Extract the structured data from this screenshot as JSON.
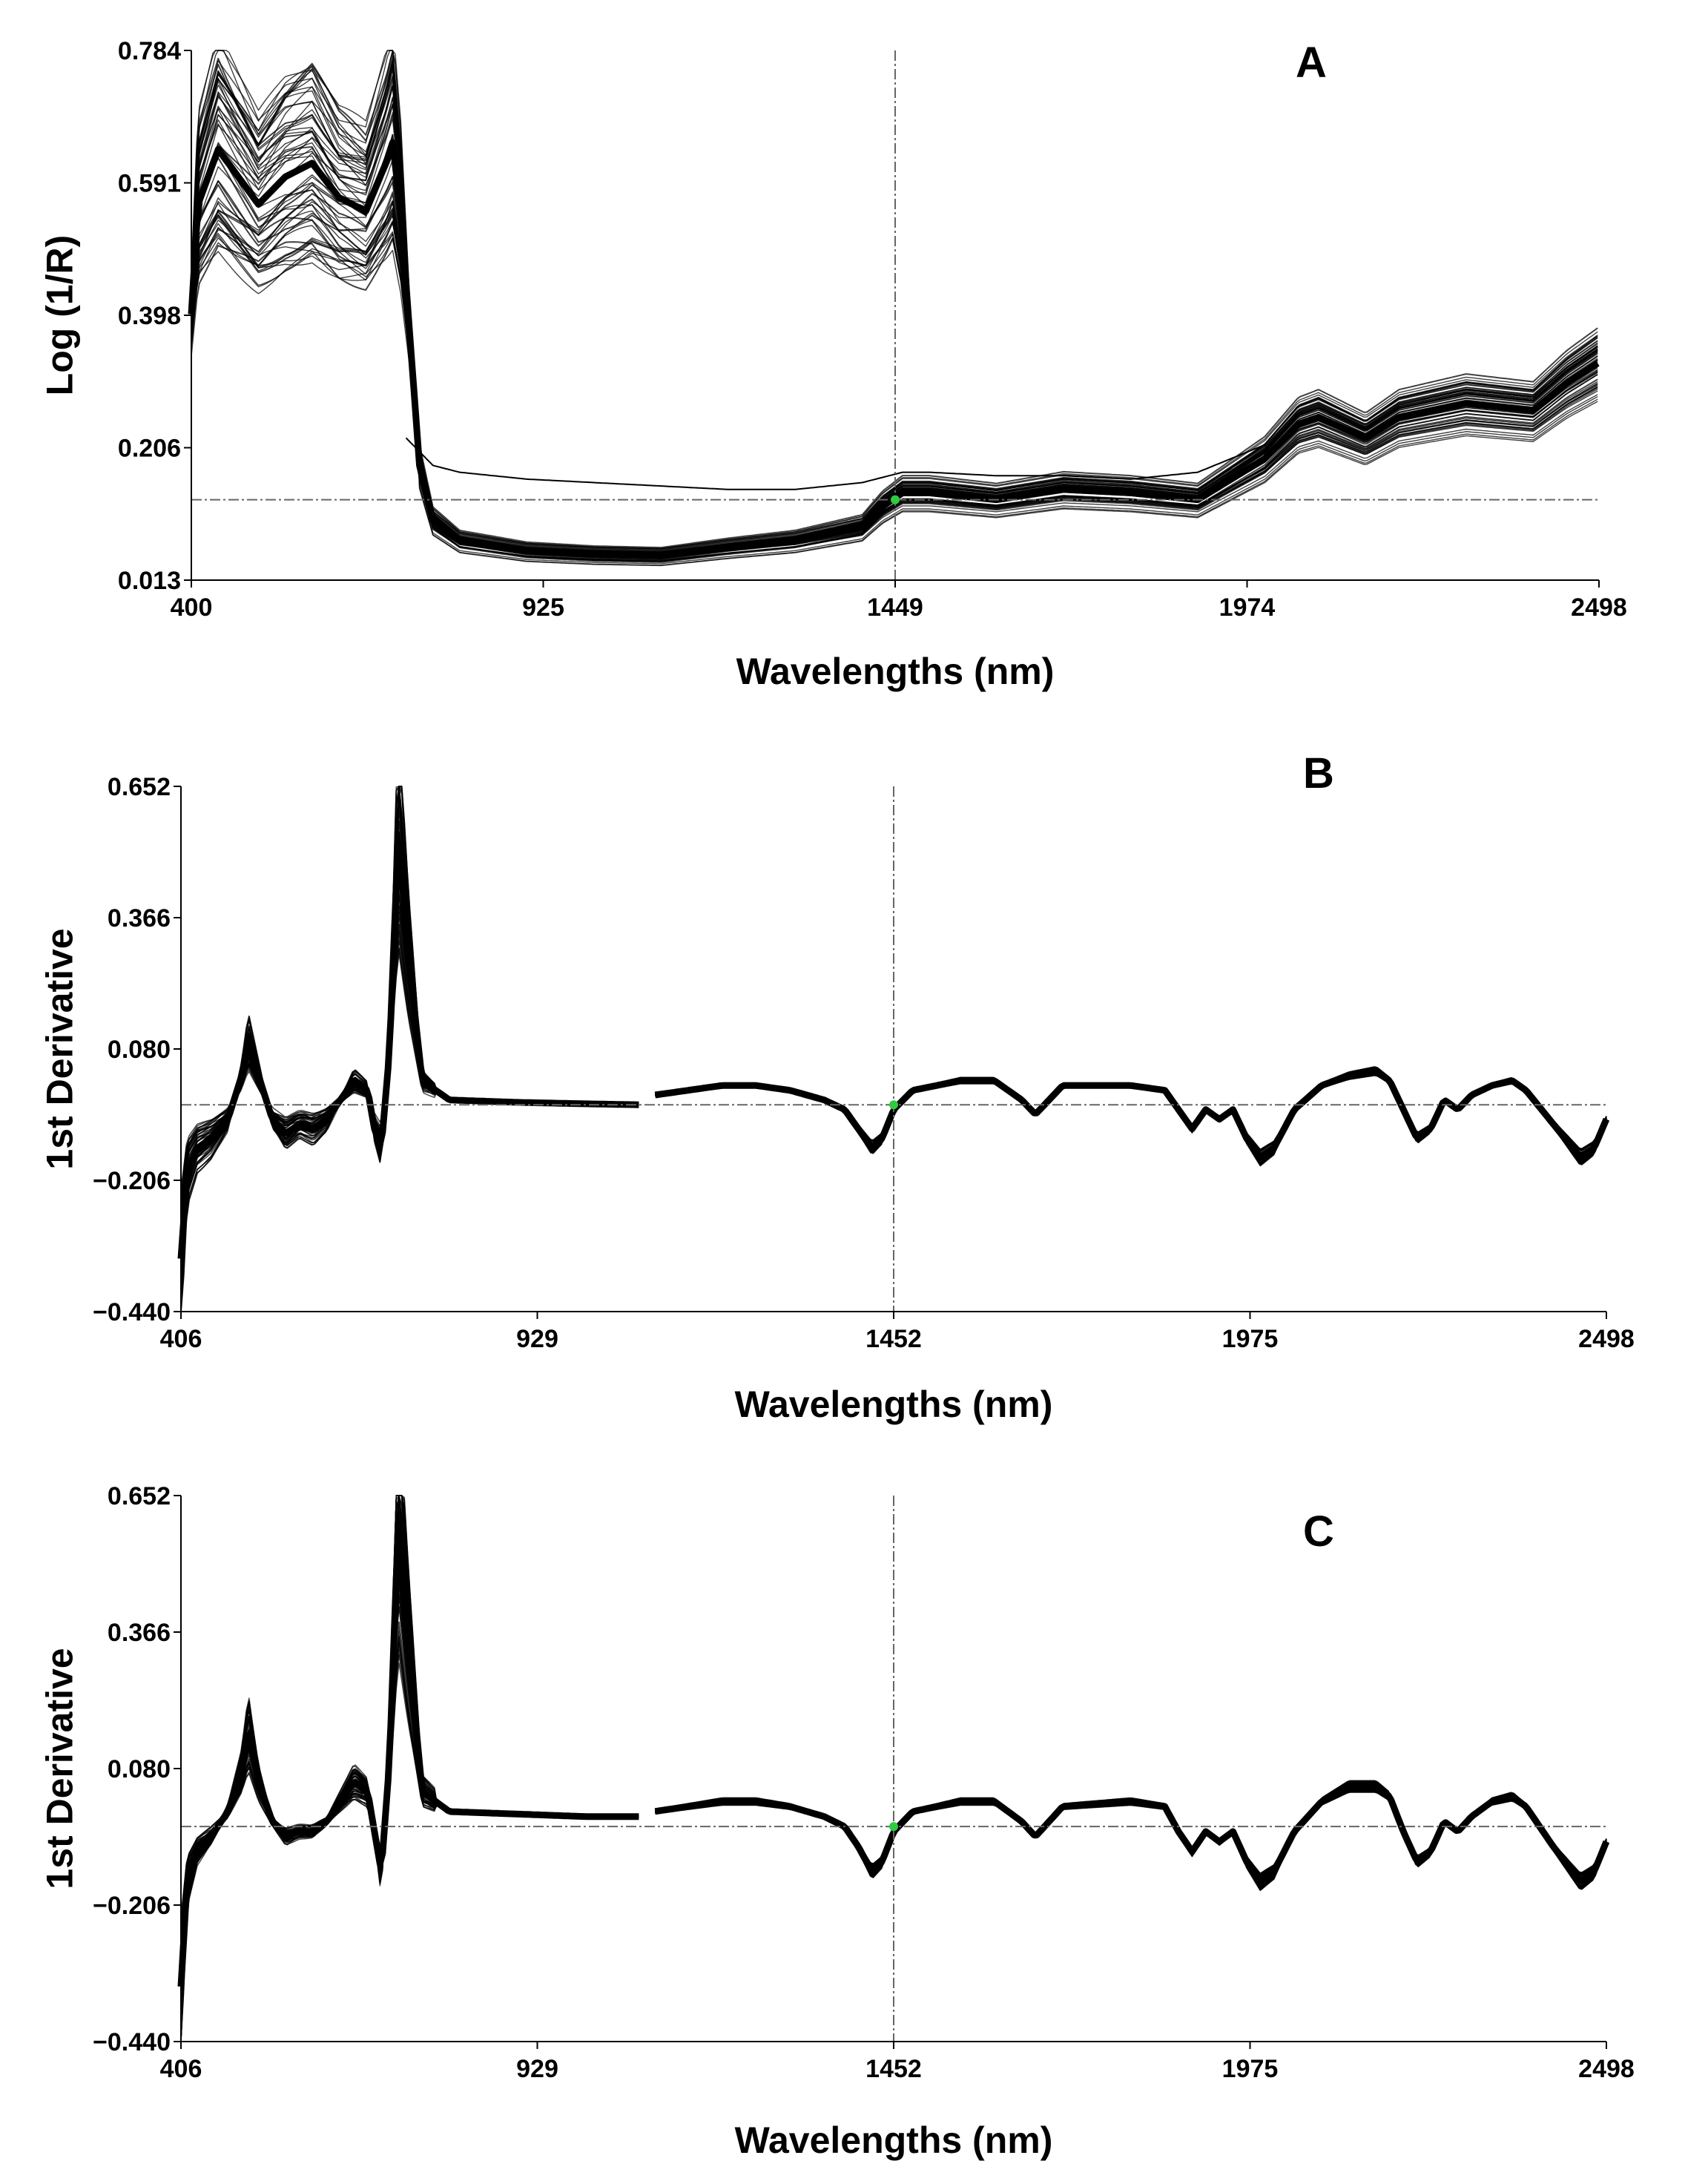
{
  "chart_data": [
    {
      "type": "line",
      "panel_label": "A",
      "xlabel": "Wavelengths (nm)",
      "ylabel": "Log (1/R)",
      "xlim": [
        400,
        2498
      ],
      "ylim": [
        0.013,
        0.784
      ],
      "x_ticks": [
        "400",
        "925",
        "1449",
        "1974",
        "2498"
      ],
      "y_ticks": [
        "0.784",
        "0.591",
        "0.398",
        "0.206",
        "0.013"
      ],
      "cursor_x": 1449,
      "cursor_y": 0.13,
      "series_count": 60,
      "mean_spectrum": {
        "x": [
          400,
          410,
          440,
          470,
          500,
          540,
          580,
          620,
          660,
          690,
          700,
          712,
          740,
          760,
          800,
          900,
          1000,
          1100,
          1200,
          1300,
          1400,
          1430,
          1460,
          1500,
          1600,
          1700,
          1800,
          1900,
          1950,
          2000,
          2050,
          2080,
          2150,
          2200,
          2300,
          2400,
          2450,
          2498
        ],
        "y": [
          0.4,
          0.56,
          0.64,
          0.6,
          0.56,
          0.6,
          0.62,
          0.57,
          0.55,
          0.62,
          0.65,
          0.55,
          0.18,
          0.1,
          0.07,
          0.055,
          0.05,
          0.048,
          0.06,
          0.07,
          0.09,
          0.12,
          0.14,
          0.14,
          0.13,
          0.145,
          0.14,
          0.13,
          0.16,
          0.19,
          0.24,
          0.25,
          0.22,
          0.25,
          0.27,
          0.26,
          0.3,
          0.33
        ]
      },
      "outlier_spectrum": {
        "x": [
          720,
          760,
          800,
          900,
          1000,
          1100,
          1200,
          1300,
          1400,
          1460,
          1500,
          1600,
          1700,
          1800,
          1900,
          1950,
          2000
        ],
        "y": [
          0.22,
          0.18,
          0.17,
          0.16,
          0.155,
          0.15,
          0.145,
          0.145,
          0.155,
          0.17,
          0.17,
          0.165,
          0.165,
          0.16,
          0.17,
          0.19,
          0.21
        ]
      }
    },
    {
      "type": "line",
      "panel_label": "B",
      "xlabel": "Wavelengths (nm)",
      "ylabel": "1st Derivative",
      "xlim": [
        406,
        2498
      ],
      "ylim": [
        -0.44,
        0.652
      ],
      "x_ticks": [
        "406",
        "929",
        "1452",
        "1975",
        "2498"
      ],
      "y_ticks": [
        "0.652",
        "0.366",
        "0.080",
        "−0.206",
        "−0.440"
      ],
      "cursor_x": 1452,
      "cursor_y": -0.01,
      "series_count": 60,
      "gap_nm": [
        1080,
        1100
      ],
      "mean_spectrum": {
        "x": [
          406,
          415,
          430,
          450,
          475,
          495,
          505,
          520,
          540,
          560,
          580,
          600,
          620,
          640,
          660,
          680,
          690,
          700,
          712,
          725,
          740,
          760,
          800,
          900,
          1000,
          1080,
          1100,
          1150,
          1200,
          1250,
          1300,
          1350,
          1380,
          1400,
          1420,
          1435,
          1452,
          1480,
          1550,
          1600,
          1640,
          1660,
          1700,
          1800,
          1850,
          1870,
          1890,
          1910,
          1930,
          1950,
          1970,
          1990,
          2010,
          2040,
          2080,
          2120,
          2160,
          2180,
          2200,
          2220,
          2240,
          2260,
          2280,
          2300,
          2330,
          2360,
          2380,
          2420,
          2460,
          2480,
          2498
        ],
        "y": [
          -0.33,
          -0.15,
          -0.1,
          -0.08,
          -0.04,
          0.05,
          0.12,
          0.05,
          -0.04,
          -0.07,
          -0.05,
          -0.06,
          -0.04,
          0.0,
          0.04,
          0.02,
          -0.06,
          -0.1,
          0.1,
          0.55,
          0.3,
          0.04,
          0.0,
          -0.005,
          -0.008,
          -0.01,
          0.01,
          0.02,
          0.03,
          0.03,
          0.02,
          0.0,
          -0.02,
          -0.06,
          -0.1,
          -0.08,
          -0.02,
          0.02,
          0.04,
          0.04,
          0.0,
          -0.03,
          0.03,
          0.03,
          0.02,
          -0.02,
          -0.06,
          -0.02,
          -0.04,
          -0.02,
          -0.08,
          -0.12,
          -0.1,
          -0.02,
          0.03,
          0.05,
          0.06,
          0.04,
          -0.02,
          -0.08,
          -0.06,
          0.0,
          -0.02,
          0.01,
          0.03,
          0.04,
          0.02,
          -0.05,
          -0.12,
          -0.1,
          -0.04
        ]
      }
    },
    {
      "type": "line",
      "panel_label": "C",
      "xlabel": "Wavelengths (nm)",
      "ylabel": "1st Derivative",
      "xlim": [
        406,
        2498
      ],
      "ylim": [
        -0.44,
        0.652
      ],
      "x_ticks": [
        "406",
        "929",
        "1452",
        "1975",
        "2498"
      ],
      "y_ticks": [
        "0.652",
        "0.366",
        "0.080",
        "−0.206",
        "−0.440"
      ],
      "cursor_x": 1452,
      "cursor_y": -0.01,
      "series_count": 60,
      "gap_nm": [
        1080,
        1100
      ],
      "mean_spectrum": {
        "x": [
          406,
          415,
          430,
          450,
          475,
          495,
          505,
          520,
          540,
          560,
          580,
          600,
          620,
          640,
          660,
          680,
          690,
          700,
          712,
          725,
          740,
          760,
          800,
          900,
          1000,
          1080,
          1100,
          1150,
          1200,
          1250,
          1300,
          1350,
          1380,
          1400,
          1420,
          1435,
          1452,
          1480,
          1550,
          1600,
          1640,
          1660,
          1700,
          1800,
          1850,
          1870,
          1890,
          1910,
          1930,
          1950,
          1970,
          1990,
          2010,
          2040,
          2080,
          2120,
          2160,
          2180,
          2200,
          2220,
          2240,
          2260,
          2280,
          2300,
          2330,
          2360,
          2380,
          2420,
          2460,
          2480,
          2498
        ],
        "y": [
          -0.33,
          -0.12,
          -0.06,
          -0.03,
          0.02,
          0.1,
          0.18,
          0.08,
          0.0,
          -0.03,
          -0.02,
          -0.02,
          0.0,
          0.04,
          0.08,
          0.06,
          -0.02,
          -0.1,
          0.12,
          0.6,
          0.35,
          0.06,
          0.02,
          0.015,
          0.01,
          0.01,
          0.02,
          0.03,
          0.04,
          0.04,
          0.03,
          0.01,
          -0.01,
          -0.05,
          -0.1,
          -0.08,
          -0.02,
          0.02,
          0.04,
          0.04,
          0.0,
          -0.03,
          0.03,
          0.04,
          0.03,
          -0.02,
          -0.06,
          -0.02,
          -0.04,
          -0.02,
          -0.08,
          -0.12,
          -0.1,
          -0.02,
          0.04,
          0.07,
          0.07,
          0.05,
          -0.02,
          -0.08,
          -0.06,
          0.0,
          -0.02,
          0.01,
          0.04,
          0.05,
          0.03,
          -0.05,
          -0.12,
          -0.1,
          -0.04
        ]
      }
    }
  ],
  "colors": {
    "frame": "#000000",
    "spectra": "#000000",
    "reference_line": "#666666",
    "cursor_marker": "#2ecc40"
  }
}
